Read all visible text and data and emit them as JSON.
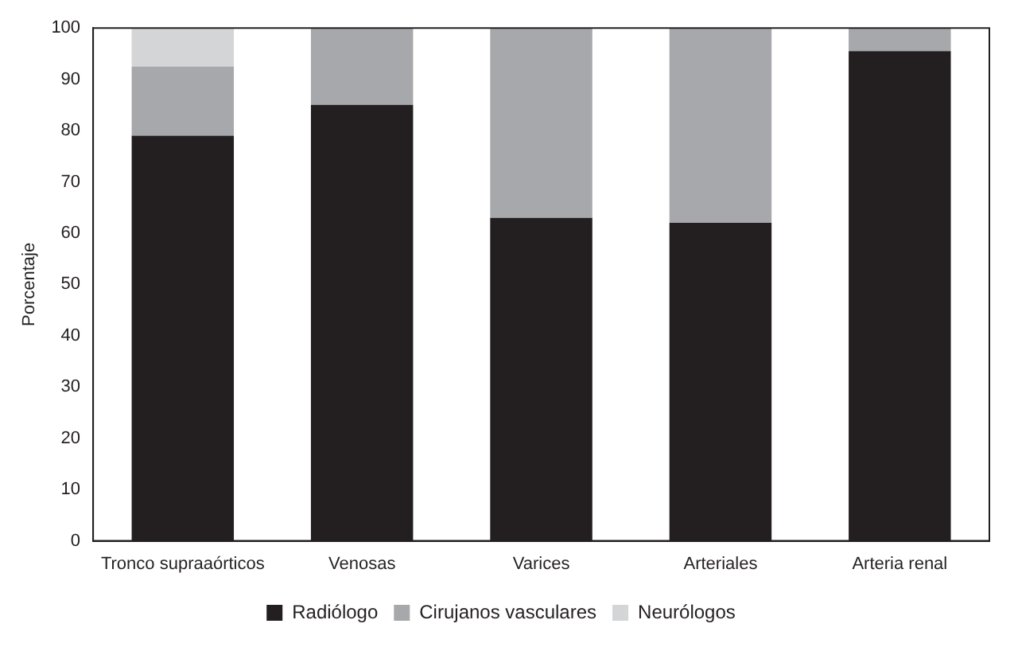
{
  "chart_data": {
    "type": "bar",
    "stacked": true,
    "ylabel": "Porcentaje",
    "categories": [
      "Tronco supraaórticos",
      "Venosas",
      "Varices",
      "Arteriales",
      "Arteria renal"
    ],
    "series": [
      {
        "name": "Radiólogo",
        "color": "#231f20",
        "values": [
          79,
          85,
          63,
          62,
          95.5
        ]
      },
      {
        "name": "Cirujanos vasculares",
        "color": "#a7a8ab",
        "values": [
          13.5,
          15,
          37,
          38,
          4.5
        ]
      },
      {
        "name": "Neurólogos",
        "color": "#d4d5d6",
        "values": [
          7.5,
          null,
          null,
          null,
          null
        ]
      }
    ],
    "ylim": [
      0,
      100
    ],
    "yticks": [
      0,
      10,
      20,
      30,
      40,
      50,
      60,
      70,
      80,
      90,
      100
    ],
    "grid": false,
    "legend": "bottom"
  }
}
